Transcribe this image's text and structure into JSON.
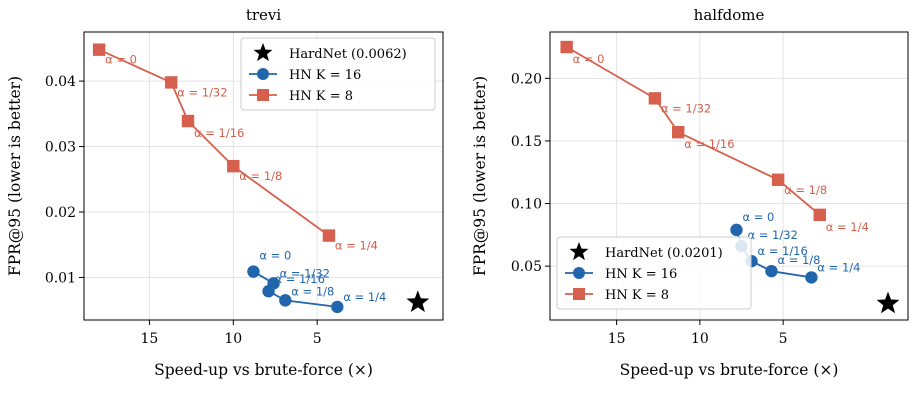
{
  "colors": {
    "hn16": "#2166ac",
    "hn8": "#d6604d",
    "hardnet": "#000000",
    "grid": "#e3e3e3"
  },
  "chart_data": [
    {
      "type": "line",
      "title": "trevi",
      "xlabel": "Speed-up vs brute-force (×)",
      "ylabel": "FPR@95 (lower is better)",
      "x_inverted": true,
      "xlim": [
        18.9,
        -2.5
      ],
      "ylim": [
        0.0035,
        0.0475
      ],
      "xticks": [
        15,
        10,
        5
      ],
      "yticks": [
        0.01,
        0.02,
        0.03,
        0.04
      ],
      "grid": true,
      "legend_position": "top-right",
      "reference": {
        "name": "HardNet (0.0062)",
        "x": -1.0,
        "y": 0.0062
      },
      "series": [
        {
          "name": "HN K = 16",
          "marker": "circle",
          "color": "#2166ac",
          "x": [
            8.8,
            7.6,
            7.9,
            6.9,
            3.8
          ],
          "y": [
            0.0109,
            0.0091,
            0.0079,
            0.0065,
            0.0055
          ],
          "labels": [
            "α = 0",
            "α = 1/32",
            "α = 1/16",
            "α = 1/8",
            "α = 1/4"
          ]
        },
        {
          "name": "HN K = 8",
          "marker": "square",
          "color": "#d6604d",
          "x": [
            18.0,
            13.7,
            12.7,
            10.0,
            4.3
          ],
          "y": [
            0.0448,
            0.0398,
            0.0339,
            0.027,
            0.0164
          ],
          "labels": [
            "α = 0",
            "α = 1/32",
            "α = 1/16",
            "α = 1/8",
            "α = 1/4"
          ]
        }
      ]
    },
    {
      "type": "line",
      "title": "halfdome",
      "xlabel": "Speed-up vs brute-force (×)",
      "ylabel": "FPR@95 (lower is better)",
      "x_inverted": true,
      "xlim": [
        19.0,
        -2.5
      ],
      "ylim": [
        0.007,
        0.237
      ],
      "xticks": [
        15,
        10,
        5
      ],
      "yticks": [
        0.05,
        0.1,
        0.15,
        0.2
      ],
      "grid": true,
      "legend_position": "lower-left",
      "reference": {
        "name": "HardNet (0.0201)",
        "x": -1.3,
        "y": 0.0201
      },
      "series": [
        {
          "name": "HN K = 16",
          "marker": "circle",
          "color": "#2166ac",
          "x": [
            7.8,
            7.5,
            6.9,
            5.7,
            3.3
          ],
          "y": [
            0.079,
            0.066,
            0.054,
            0.046,
            0.041
          ],
          "labels": [
            "α = 0",
            "α = 1/32",
            "α = 1/16",
            "α = 1/8",
            "α = 1/4"
          ]
        },
        {
          "name": "HN K = 8",
          "marker": "square",
          "color": "#d6604d",
          "x": [
            18.0,
            12.7,
            11.3,
            5.3,
            2.8
          ],
          "y": [
            0.225,
            0.184,
            0.157,
            0.119,
            0.091
          ],
          "labels": [
            "α = 0",
            "α = 1/32",
            "α = 1/16",
            "α = 1/8",
            "α = 1/4"
          ]
        }
      ]
    }
  ]
}
